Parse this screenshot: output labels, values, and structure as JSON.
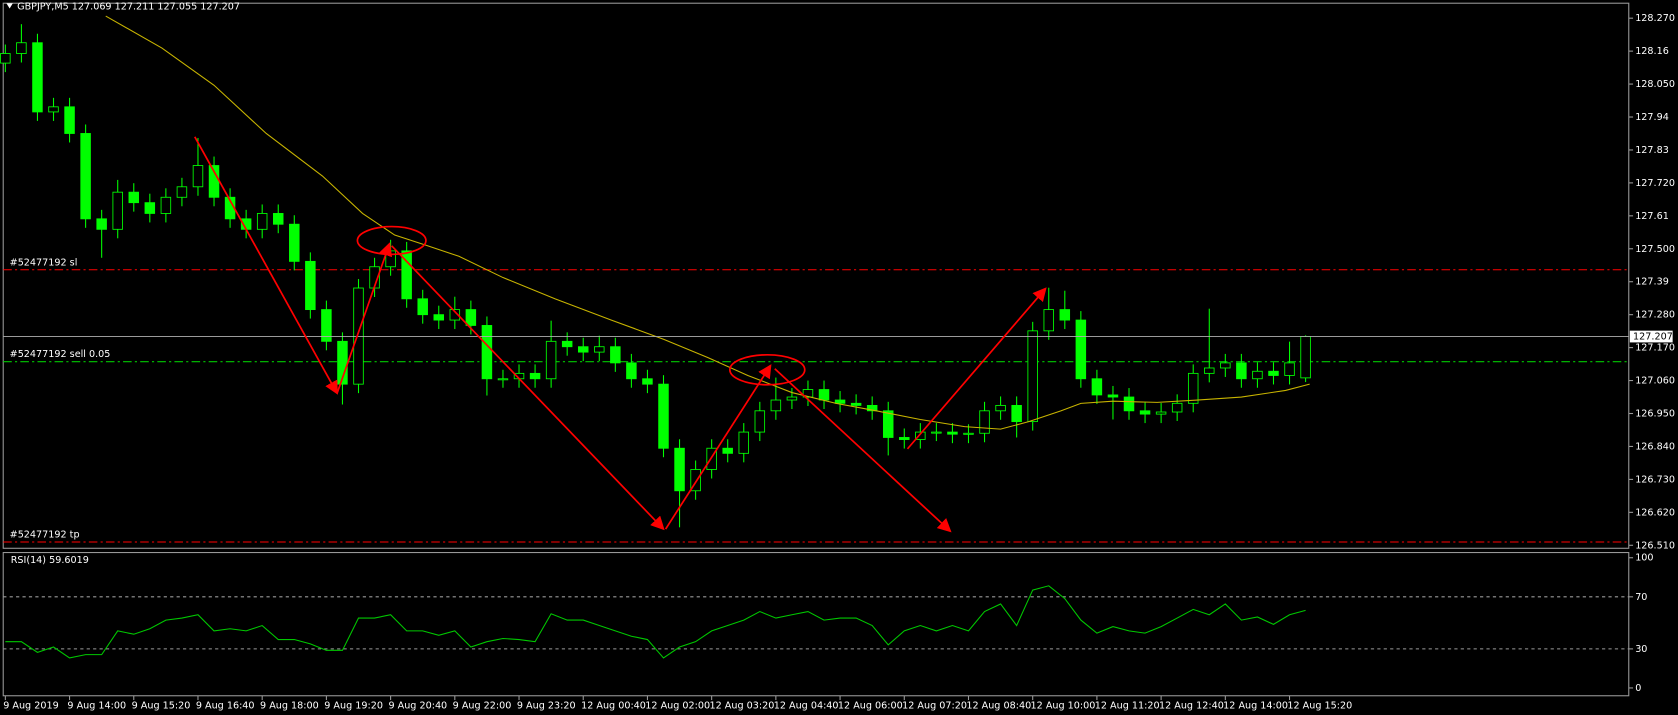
{
  "chart_data": [
    {
      "type": "candlestick",
      "title": "GBPJPY,M5  127.069 127.211 127.055 127.207",
      "x": [
        0,
        4,
        8,
        12,
        16,
        20,
        24,
        28,
        32,
        36,
        40,
        44,
        48,
        52,
        56,
        60,
        64,
        68,
        72,
        76,
        80,
        84,
        88,
        92,
        96,
        100,
        104,
        108,
        112,
        116,
        120,
        124,
        128,
        132,
        136,
        140,
        144,
        148,
        152,
        156,
        160,
        164,
        168,
        172,
        176,
        180,
        184,
        188,
        192,
        196,
        200,
        204,
        208,
        212,
        216,
        220,
        224,
        228,
        232,
        236,
        240,
        244,
        248,
        252,
        256,
        260,
        264,
        268,
        272,
        276,
        280,
        284,
        288,
        292,
        296,
        300,
        304,
        308,
        312,
        316,
        320,
        324
      ],
      "open": [
        128.12,
        128.152,
        128.188,
        127.957,
        127.974,
        127.885,
        127.6,
        127.565,
        127.689,
        127.654,
        127.618,
        127.672,
        127.707,
        127.778,
        127.672,
        127.6,
        127.565,
        127.618,
        127.582,
        127.458,
        127.297,
        127.191,
        127.048,
        127.369,
        127.44,
        127.493,
        127.333,
        127.28,
        127.262,
        127.297,
        127.244,
        127.066,
        127.066,
        127.084,
        127.066,
        127.191,
        127.173,
        127.155,
        127.173,
        127.119,
        127.066,
        127.048,
        126.834,
        126.692,
        126.763,
        126.834,
        126.817,
        126.888,
        126.959,
        126.995,
        127.005,
        127.03,
        126.995,
        126.984,
        126.977,
        126.959,
        126.87,
        126.863,
        126.888,
        126.888,
        126.881,
        126.884,
        126.959,
        126.977,
        126.923,
        127.226,
        127.297,
        127.262,
        127.066,
        127.012,
        127.005,
        126.959,
        126.948,
        126.955,
        126.984,
        127.084,
        127.102,
        127.119,
        127.066,
        127.091,
        127.077,
        127.069
      ],
      "high": [
        128.182,
        128.25,
        128.218,
        128.004,
        128.004,
        127.915,
        127.63,
        127.73,
        127.719,
        127.684,
        127.702,
        127.737,
        127.87,
        127.808,
        127.702,
        127.63,
        127.648,
        127.648,
        127.612,
        127.488,
        127.327,
        127.221,
        127.399,
        127.47,
        127.53,
        127.523,
        127.363,
        127.31,
        127.34,
        127.327,
        127.274,
        127.096,
        127.114,
        127.114,
        127.26,
        127.221,
        127.203,
        127.21,
        127.203,
        127.149,
        127.096,
        127.078,
        126.864,
        126.793,
        126.864,
        126.864,
        126.918,
        126.989,
        127.07,
        127.035,
        127.06,
        127.06,
        127.025,
        127.014,
        127.007,
        126.989,
        126.9,
        126.918,
        126.918,
        126.918,
        126.914,
        126.989,
        127.007,
        127.007,
        127.256,
        127.37,
        127.36,
        127.292,
        127.096,
        127.042,
        127.035,
        126.989,
        126.985,
        127.014,
        127.114,
        127.3,
        127.149,
        127.149,
        127.121,
        127.121,
        127.19,
        127.211
      ],
      "low": [
        128.09,
        128.122,
        127.927,
        127.927,
        127.855,
        127.57,
        127.47,
        127.535,
        127.624,
        127.588,
        127.588,
        127.642,
        127.677,
        127.642,
        127.57,
        127.535,
        127.535,
        127.552,
        127.428,
        127.267,
        127.161,
        126.98,
        127.018,
        127.339,
        127.41,
        127.303,
        127.25,
        127.232,
        127.232,
        127.214,
        127.01,
        127.036,
        127.036,
        127.036,
        127.036,
        127.143,
        127.125,
        127.125,
        127.089,
        127.036,
        127.018,
        126.804,
        126.57,
        126.662,
        126.733,
        126.787,
        126.787,
        126.858,
        126.929,
        126.965,
        126.975,
        126.965,
        126.954,
        126.947,
        126.929,
        126.81,
        126.833,
        126.833,
        126.858,
        126.851,
        126.851,
        126.854,
        126.929,
        126.87,
        126.893,
        127.196,
        127.232,
        127.036,
        126.982,
        126.93,
        126.929,
        126.918,
        126.918,
        126.925,
        126.954,
        127.054,
        127.072,
        127.036,
        127.036,
        127.047,
        127.047,
        127.055
      ],
      "close": [
        128.152,
        128.188,
        127.957,
        127.974,
        127.885,
        127.6,
        127.565,
        127.689,
        127.654,
        127.618,
        127.672,
        127.707,
        127.778,
        127.672,
        127.6,
        127.565,
        127.618,
        127.582,
        127.458,
        127.297,
        127.191,
        127.048,
        127.369,
        127.44,
        127.493,
        127.333,
        127.28,
        127.262,
        127.297,
        127.244,
        127.066,
        127.066,
        127.084,
        127.066,
        127.191,
        127.173,
        127.155,
        127.173,
        127.119,
        127.066,
        127.048,
        126.834,
        126.692,
        126.763,
        126.834,
        126.817,
        126.888,
        126.959,
        126.995,
        127.005,
        127.03,
        126.995,
        126.984,
        126.977,
        126.959,
        126.87,
        126.863,
        126.888,
        126.888,
        126.881,
        126.884,
        126.959,
        126.977,
        126.923,
        127.226,
        127.297,
        127.262,
        127.066,
        127.012,
        127.005,
        126.959,
        126.948,
        126.955,
        126.984,
        127.084,
        127.102,
        127.119,
        127.066,
        127.091,
        127.077,
        127.119,
        127.207
      ],
      "up_color": "#000000",
      "down_color": "#00ff00",
      "wick_color": "#00ff00",
      "xlim": [
        0,
        404
      ],
      "xticks": [
        {
          "value": 0,
          "label": "9 Aug 2019"
        },
        {
          "value": 16,
          "label": "9 Aug 14:00"
        },
        {
          "value": 32,
          "label": "9 Aug 15:20"
        },
        {
          "value": 48,
          "label": "9 Aug 16:40"
        },
        {
          "value": 64,
          "label": "9 Aug 18:00"
        },
        {
          "value": 80,
          "label": "9 Aug 19:20"
        },
        {
          "value": 96,
          "label": "9 Aug 20:40"
        },
        {
          "value": 112,
          "label": "9 Aug 22:00"
        },
        {
          "value": 128,
          "label": "9 Aug 23:20"
        },
        {
          "value": 144,
          "label": "12 Aug 00:40"
        },
        {
          "value": 160,
          "label": "12 Aug 02:00"
        },
        {
          "value": 176,
          "label": "12 Aug 03:20"
        },
        {
          "value": 192,
          "label": "12 Aug 04:40"
        },
        {
          "value": 208,
          "label": "12 Aug 06:00"
        },
        {
          "value": 224,
          "label": "12 Aug 07:20"
        },
        {
          "value": 240,
          "label": "12 Aug 08:40"
        },
        {
          "value": 256,
          "label": "12 Aug 10:00"
        },
        {
          "value": 272,
          "label": "12 Aug 11:20"
        },
        {
          "value": 288,
          "label": "12 Aug 12:40"
        },
        {
          "value": 304,
          "label": "12 Aug 14:00"
        },
        {
          "value": 320,
          "label": "12 Aug 15:20"
        }
      ],
      "ylim": [
        126.5,
        128.32
      ],
      "yticks": [
        {
          "value": 128.27,
          "label": "128.270"
        },
        128.16,
        {
          "value": 128.05,
          "label": "128.050"
        },
        127.94,
        127.83,
        {
          "value": 127.72,
          "label": "127.720"
        },
        127.61,
        {
          "value": 127.5,
          "label": "127.500"
        },
        127.39,
        {
          "value": 127.28,
          "label": "127.280"
        },
        {
          "value": 127.17,
          "label": "127.170"
        },
        {
          "value": 127.06,
          "label": "127.060"
        },
        {
          "value": 126.95,
          "label": "126.950"
        },
        {
          "value": 126.84,
          "label": "126.840"
        },
        {
          "value": 126.73,
          "label": "126.730"
        },
        {
          "value": 126.62,
          "label": "126.620"
        },
        {
          "value": 126.51,
          "label": "126.510"
        }
      ],
      "overlays": [
        {
          "type": "line",
          "color": "#c8b400",
          "x": [
            25,
            39,
            52,
            65,
            79,
            89,
            97,
            105,
            113,
            124,
            137,
            151,
            164,
            175,
            185,
            196,
            207,
            217,
            228,
            239,
            248,
            255,
            263,
            268,
            276,
            287,
            297,
            308,
            319,
            325
          ],
          "values": [
            128.277,
            128.17,
            128.046,
            127.885,
            127.743,
            127.618,
            127.546,
            127.511,
            127.475,
            127.404,
            127.333,
            127.262,
            127.198,
            127.137,
            127.077,
            127.02,
            126.984,
            126.959,
            126.93,
            126.906,
            126.898,
            126.923,
            126.959,
            126.984,
            126.991,
            126.987,
            126.995,
            127.005,
            127.027,
            127.048
          ]
        }
      ],
      "levels": [
        {
          "label": "#52477192 sl",
          "value": 127.43,
          "color": "#ff0000"
        },
        {
          "label": "#52477192 sell 0.05",
          "value": 127.123,
          "color": "#00c800"
        },
        {
          "label": "#52477192 tp",
          "value": 126.521,
          "color": "#ff0000"
        }
      ],
      "last_price": 127.207
    },
    {
      "type": "line",
      "title": "RSI(14) 59.6019",
      "color": "#00c800",
      "values": [
        35.5,
        35.5,
        27.3,
        31.4,
        23.1,
        25.6,
        25.6,
        43.8,
        41.3,
        45.5,
        52.1,
        53.7,
        56.2,
        43.8,
        45.5,
        43.8,
        47.9,
        37.2,
        37.2,
        33.9,
        28.9,
        28.9,
        53.7,
        53.7,
        56.2,
        43.8,
        43.8,
        40.5,
        43.8,
        31.4,
        35.5,
        38.0,
        37.2,
        35.5,
        57.0,
        52.1,
        52.1,
        47.9,
        43.8,
        39.7,
        37.2,
        23.1,
        31.4,
        35.5,
        43.8,
        47.9,
        52.1,
        58.7,
        53.7,
        56.2,
        58.7,
        52.1,
        53.7,
        53.7,
        47.9,
        33.1,
        43.8,
        47.9,
        43.8,
        47.9,
        43.8,
        58.7,
        64.5,
        47.9,
        75.2,
        78.5,
        68.6,
        52.1,
        42.1,
        47.1,
        43.8,
        42.1,
        47.1,
        53.7,
        60.3,
        56.2,
        64.5,
        52.1,
        54.5,
        48.8,
        56.2,
        59.6019
      ],
      "ylim": [
        -6,
        104
      ],
      "yticks": [
        0,
        30,
        70,
        100
      ],
      "levels": [
        30,
        70
      ]
    }
  ]
}
